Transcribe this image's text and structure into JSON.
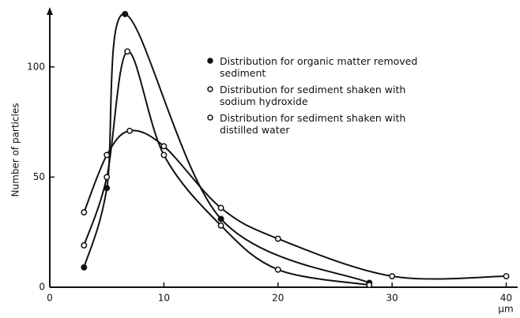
{
  "chart_data": {
    "type": "line",
    "y_label": "Number of particles",
    "x_label": "µm",
    "xlim": [
      0,
      41
    ],
    "ylim": [
      0,
      125
    ],
    "xticks": [
      0,
      10,
      20,
      30,
      40
    ],
    "yticks": [
      0,
      50,
      100
    ],
    "series": [
      {
        "name": "Distribution for organic matter removed sediment",
        "marker": "filled",
        "color": "#111111",
        "x": [
          3,
          5,
          6.6,
          15,
          28
        ],
        "values": [
          9,
          45,
          124,
          31,
          2
        ]
      },
      {
        "name": "Distribution for sediment shaken with sodium hydroxide",
        "marker": "open",
        "color": "#111111",
        "x": [
          3,
          5,
          6.8,
          10,
          15,
          20,
          28
        ],
        "values": [
          19,
          50,
          107,
          60,
          28,
          8,
          1
        ]
      },
      {
        "name": "Distribution for sediment shaken with distilled water",
        "marker": "open",
        "color": "#111111",
        "x": [
          3,
          5,
          7,
          10,
          15,
          20,
          30,
          40
        ],
        "values": [
          34,
          60,
          71,
          64,
          36,
          22,
          5,
          5
        ]
      }
    ]
  }
}
